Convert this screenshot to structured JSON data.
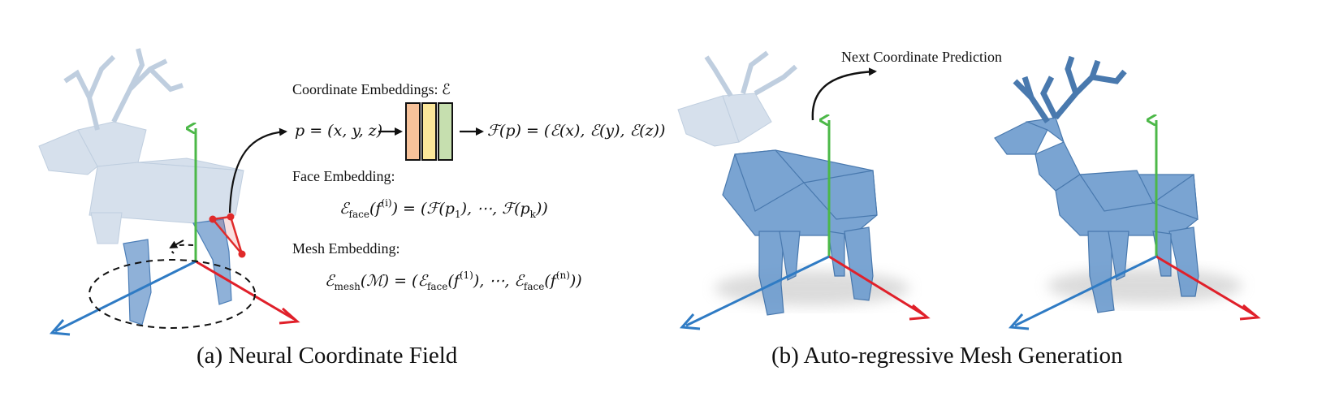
{
  "captions": {
    "left": "(a) Neural Coordinate Field",
    "right": "(b) Auto-regressive Mesh Generation"
  },
  "labels": {
    "coord_embeddings": "Coordinate Embeddings: ℰ",
    "face_embedding": "Face Embedding:",
    "mesh_embedding": "Mesh Embedding:",
    "next_coord": "Next Coordinate Prediction"
  },
  "equations": {
    "point": "p = (x, y, z)",
    "feature": "ℱ(p) = (ℰ(x), ℰ(y), ℰ(z))",
    "face_lhs": "ℰ",
    "face_sub": "face",
    "face_arg": "(f",
    "face_sup": "(i)",
    "face_rhs": ") = (ℱ(p",
    "face_p1_sub": "1",
    "face_mid": "), ⋯, ℱ(p",
    "face_pk_sub": "k",
    "face_end": "))",
    "mesh_lhs": "ℰ",
    "mesh_sub": "mesh",
    "mesh_arg": "(ℳ) = (ℰ",
    "mesh_face_sub": "face",
    "mesh_f1": "(f",
    "mesh_f1_sup": "(1)",
    "mesh_mid": "), ⋯, ℰ",
    "mesh_face_sub2": "face",
    "mesh_fn": "(f",
    "mesh_fn_sup": "(n)",
    "mesh_end": "))"
  },
  "colors": {
    "axis_green": "#4cb848",
    "axis_red": "#e0202a",
    "axis_blue": "#2f7bc4",
    "mesh_fill": "#6f9dcf",
    "mesh_faded": "#c9d6e6",
    "mesh_edge": "#3a6ea8",
    "highlight_red": "#e02a2a",
    "embed_orange": "#f7c29a",
    "embed_yellow": "#fbe79a",
    "embed_green": "#c6dfaf"
  }
}
